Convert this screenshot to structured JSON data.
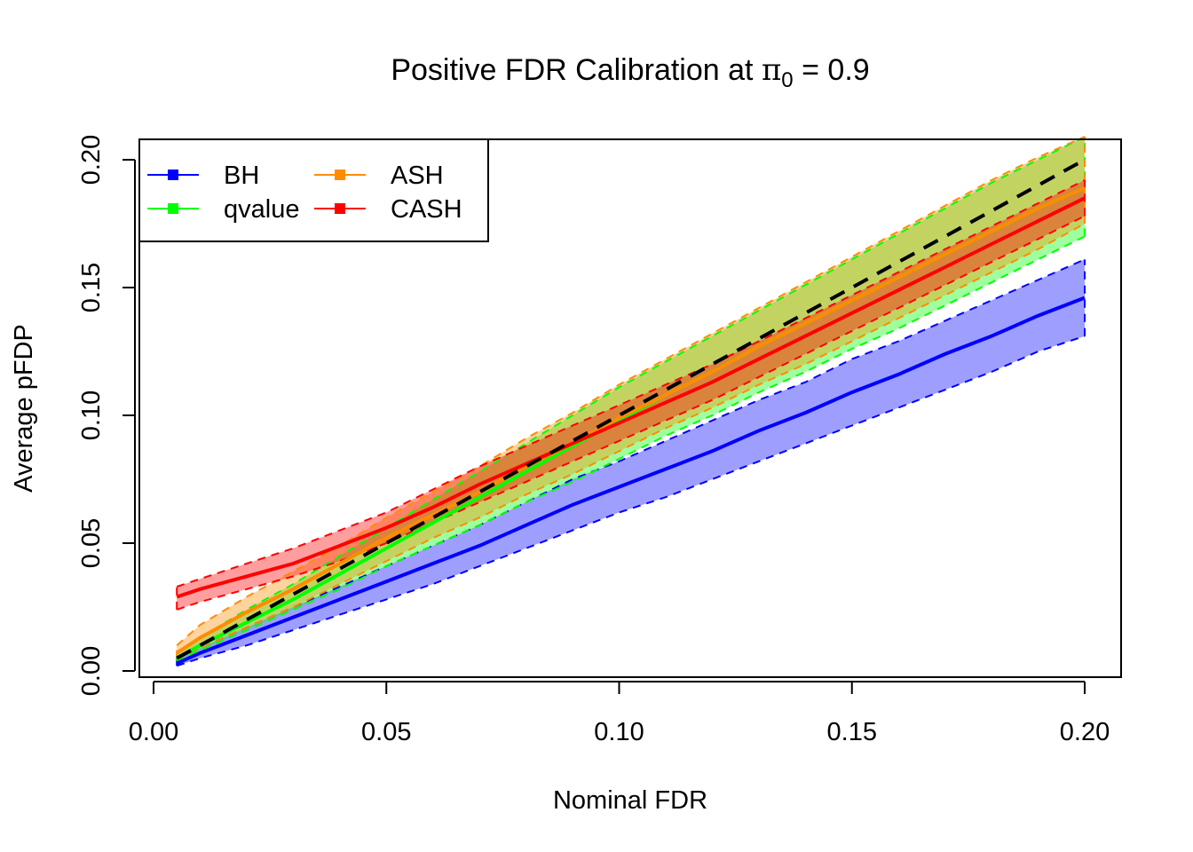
{
  "chart_data": {
    "type": "line",
    "title": {
      "prefix": "Positive FDR Calibration at ",
      "symbol": "π",
      "subscript": "0",
      "suffix": " = 0.9"
    },
    "xlabel": "Nominal FDR",
    "ylabel": "Average pFDP",
    "xlim": [
      0.0,
      0.2
    ],
    "ylim": [
      0.0,
      0.2
    ],
    "xticks": [
      "0.00",
      "0.05",
      "0.10",
      "0.15",
      "0.20"
    ],
    "yticks": [
      "0.00",
      "0.05",
      "0.10",
      "0.15",
      "0.20"
    ],
    "grid": false,
    "legend_placement": "top-left",
    "reference_line": {
      "style": "dashed",
      "color": "#000000",
      "x": [
        0.005,
        0.2
      ],
      "y": [
        0.005,
        0.2
      ]
    },
    "x": [
      0.005,
      0.01,
      0.02,
      0.03,
      0.04,
      0.05,
      0.06,
      0.07,
      0.08,
      0.09,
      0.1,
      0.11,
      0.12,
      0.13,
      0.14,
      0.15,
      0.16,
      0.17,
      0.18,
      0.19,
      0.2
    ],
    "series": [
      {
        "name": "BH",
        "color": "#0000FF",
        "values": [
          0.003,
          0.007,
          0.014,
          0.021,
          0.028,
          0.035,
          0.042,
          0.049,
          0.057,
          0.065,
          0.072,
          0.079,
          0.086,
          0.094,
          0.101,
          0.109,
          0.116,
          0.124,
          0.131,
          0.139,
          0.146
        ],
        "lower": [
          0.002,
          0.005,
          0.01,
          0.016,
          0.022,
          0.028,
          0.034,
          0.041,
          0.048,
          0.055,
          0.062,
          0.068,
          0.075,
          0.082,
          0.089,
          0.096,
          0.103,
          0.11,
          0.117,
          0.125,
          0.131
        ],
        "upper": [
          0.005,
          0.009,
          0.017,
          0.025,
          0.033,
          0.041,
          0.049,
          0.057,
          0.066,
          0.075,
          0.082,
          0.09,
          0.098,
          0.106,
          0.113,
          0.122,
          0.129,
          0.137,
          0.145,
          0.153,
          0.161
        ]
      },
      {
        "name": "qvalue",
        "color": "#00FF00",
        "values": [
          0.005,
          0.01,
          0.019,
          0.028,
          0.038,
          0.048,
          0.058,
          0.068,
          0.078,
          0.088,
          0.098,
          0.108,
          0.117,
          0.127,
          0.136,
          0.145,
          0.154,
          0.163,
          0.172,
          0.181,
          0.189
        ],
        "lower": [
          0.004,
          0.008,
          0.016,
          0.024,
          0.032,
          0.041,
          0.049,
          0.057,
          0.066,
          0.074,
          0.083,
          0.092,
          0.1,
          0.109,
          0.117,
          0.126,
          0.134,
          0.143,
          0.152,
          0.161,
          0.17
        ],
        "upper": [
          0.007,
          0.013,
          0.024,
          0.034,
          0.045,
          0.056,
          0.067,
          0.078,
          0.089,
          0.1,
          0.111,
          0.121,
          0.131,
          0.141,
          0.151,
          0.161,
          0.171,
          0.181,
          0.191,
          0.2,
          0.209
        ]
      },
      {
        "name": "ASH",
        "color": "#FF8C00",
        "values": [
          0.007,
          0.013,
          0.023,
          0.032,
          0.042,
          0.052,
          0.061,
          0.07,
          0.08,
          0.089,
          0.099,
          0.108,
          0.117,
          0.127,
          0.136,
          0.145,
          0.154,
          0.163,
          0.172,
          0.181,
          0.189
        ],
        "lower": [
          0.005,
          0.009,
          0.017,
          0.025,
          0.034,
          0.043,
          0.052,
          0.06,
          0.069,
          0.077,
          0.086,
          0.095,
          0.103,
          0.112,
          0.12,
          0.129,
          0.138,
          0.147,
          0.156,
          0.165,
          0.175
        ],
        "upper": [
          0.01,
          0.018,
          0.029,
          0.039,
          0.049,
          0.06,
          0.07,
          0.08,
          0.091,
          0.101,
          0.112,
          0.122,
          0.132,
          0.142,
          0.152,
          0.162,
          0.172,
          0.182,
          0.192,
          0.201,
          0.209
        ]
      },
      {
        "name": "CASH",
        "color": "#FF0000",
        "values": [
          0.029,
          0.032,
          0.037,
          0.042,
          0.049,
          0.056,
          0.064,
          0.073,
          0.081,
          0.089,
          0.097,
          0.105,
          0.113,
          0.122,
          0.131,
          0.14,
          0.149,
          0.158,
          0.167,
          0.176,
          0.185
        ],
        "lower": [
          0.024,
          0.027,
          0.032,
          0.037,
          0.043,
          0.05,
          0.058,
          0.066,
          0.074,
          0.082,
          0.09,
          0.098,
          0.106,
          0.115,
          0.124,
          0.133,
          0.142,
          0.151,
          0.16,
          0.169,
          0.178
        ],
        "upper": [
          0.033,
          0.036,
          0.042,
          0.048,
          0.055,
          0.062,
          0.071,
          0.08,
          0.088,
          0.096,
          0.104,
          0.112,
          0.12,
          0.129,
          0.138,
          0.147,
          0.156,
          0.165,
          0.174,
          0.183,
          0.192
        ]
      }
    ]
  }
}
